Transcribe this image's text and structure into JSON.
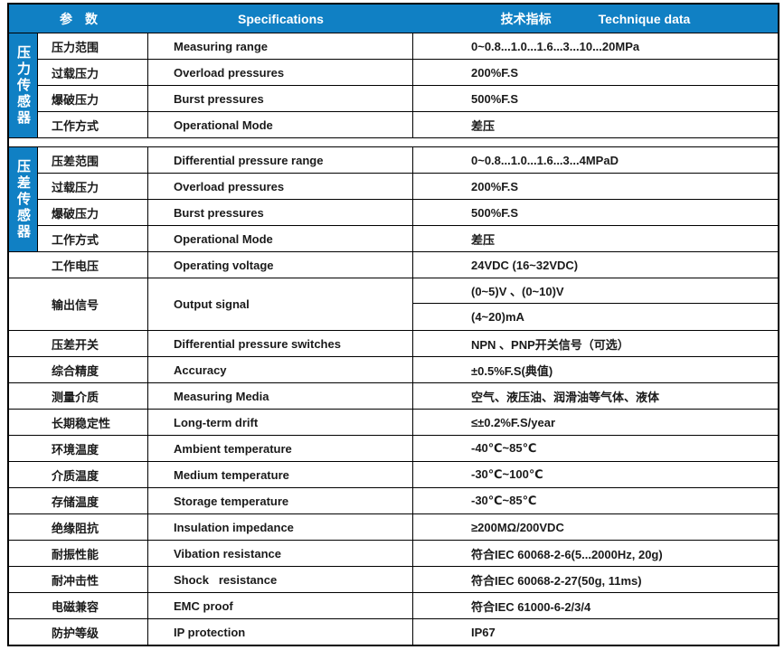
{
  "header": {
    "col_param": "参　数",
    "col_spec": "Specifications",
    "col_data_cn": "技术指标",
    "col_data_en": "Technique data"
  },
  "accent_color": "#1080C4",
  "pressure_section": {
    "label": "压力传感器",
    "rows": [
      {
        "param": "压力范围",
        "spec": "Measuring range",
        "value": "0~0.8...1.0...1.6...3...10...20MPa"
      },
      {
        "param": "过载压力",
        "spec": "Overload pressures",
        "value": "200%F.S"
      },
      {
        "param": "爆破压力",
        "spec": "Burst pressures",
        "value": "500%F.S"
      },
      {
        "param": "工作方式",
        "spec": "Operational Mode",
        "value": "差压"
      }
    ]
  },
  "diff_section": {
    "label": "压差传感器",
    "rows": [
      {
        "param": "压差范围",
        "spec": "Differential pressure range",
        "value": "0~0.8...1.0...1.6...3...4MPaD"
      },
      {
        "param": "过载压力",
        "spec": "Overload pressures",
        "value": "200%F.S"
      },
      {
        "param": "爆破压力",
        "spec": "Burst pressures",
        "value": "500%F.S"
      },
      {
        "param": "工作方式",
        "spec": "Operational Mode",
        "value": "差压"
      }
    ]
  },
  "voltage_row": {
    "param": "工作电压",
    "spec": "Operating voltage",
    "value": "24VDC (16~32VDC)"
  },
  "output_row": {
    "param": "输出信号",
    "spec": "Output signal",
    "values": [
      "(0~5)V 、(0~10)V",
      "(4~20)mA"
    ]
  },
  "general_rows": [
    {
      "param": "压差开关",
      "spec": "Differential pressure switches",
      "value": "NPN 、PNP开关信号（可选）"
    },
    {
      "param": "综合精度",
      "spec": "Accuracy",
      "value": "±0.5%F.S(典值)"
    },
    {
      "param": "测量介质",
      "spec": "Measuring Media",
      "value": "空气、液压油、润滑油等气体、液体"
    },
    {
      "param": "长期稳定性",
      "spec": "Long-term drift",
      "value": "≤±0.2%F.S/year"
    },
    {
      "param": "环境温度",
      "spec": "Ambient temperature",
      "value": "-40℃~85℃"
    },
    {
      "param": "介质温度",
      "spec": "Medium temperature",
      "value": "-30℃~100℃"
    },
    {
      "param": "存储温度",
      "spec": "Storage temperature",
      "value": "-30℃~85℃"
    },
    {
      "param": "绝缘阻抗",
      "spec": "Insulation impedance",
      "value": "≥200MΩ/200VDC"
    },
    {
      "param": "耐振性能",
      "spec": "Vibation resistance",
      "value": "符合IEC 60068-2-6(5...2000Hz, 20g)"
    },
    {
      "param": "耐冲击性",
      "spec": "Shock   resistance",
      "value": "符合IEC 60068-2-27(50g, 11ms)"
    },
    {
      "param": "电磁兼容",
      "spec": "EMC proof",
      "value": "符合IEC 61000-6-2/3/4"
    },
    {
      "param": "防护等级",
      "spec": "IP protection",
      "value": "IP67"
    }
  ]
}
